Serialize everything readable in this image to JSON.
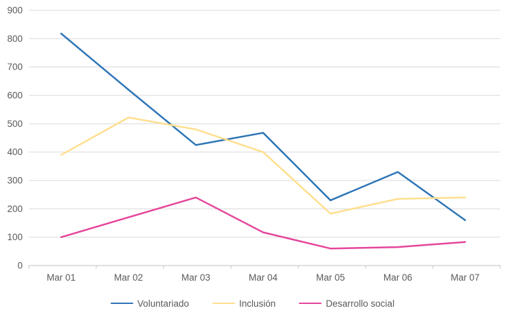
{
  "chart_data": {
    "type": "line",
    "x": [
      "Mar 01",
      "Mar 02",
      "Mar 03",
      "Mar 04",
      "Mar 05",
      "Mar 06",
      "Mar 07"
    ],
    "series": [
      {
        "name": "Voluntariado",
        "color": "#2E75B6",
        "values": [
          818,
          620,
          425,
          468,
          230,
          330,
          160
        ]
      },
      {
        "name": "Inclusión",
        "color": "#FFDF8F",
        "values": [
          390,
          522,
          480,
          400,
          183,
          235,
          240
        ]
      },
      {
        "name": "Desarrollo social",
        "color": "#E5459B",
        "values": [
          100,
          170,
          240,
          117,
          60,
          65,
          83
        ]
      }
    ],
    "title": "",
    "xlabel": "",
    "ylabel": "",
    "ylim": [
      0,
      900
    ],
    "ytick_step": 100,
    "ytick_labels": [
      "0",
      "100",
      "200",
      "300",
      "400",
      "500",
      "600",
      "700",
      "800",
      "900"
    ],
    "grid": true,
    "legend_position": "bottom"
  },
  "style": {
    "gridline_color": "#D9D9D9",
    "axis_line_color": "#C0C0C0",
    "tick_color": "#C0C0C0",
    "label_color": "#595959",
    "background": "#FFFFFF"
  }
}
